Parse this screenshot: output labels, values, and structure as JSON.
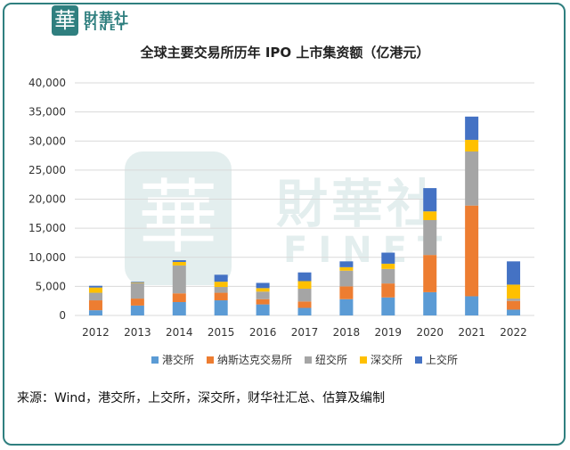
{
  "brand": {
    "logo_glyph": "華",
    "name_cn": "財華社",
    "name_en": "FINET"
  },
  "colors": {
    "brand": "#2f7f7f",
    "hkex": "#5b9bd5",
    "nasdaq": "#ed7d31",
    "nyse": "#a5a5a5",
    "szse": "#ffc000",
    "sse": "#4472c4"
  },
  "chart_data": {
    "type": "bar",
    "stacked": true,
    "title": "全球主要交易所历年 IPO 上市集资额（亿港元）",
    "xlabel": "",
    "ylabel": "",
    "ylim": [
      0,
      40000
    ],
    "yticks": [
      "0",
      "5,000",
      "10,000",
      "15,000",
      "20,000",
      "25,000",
      "30,000",
      "35,000",
      "40,000"
    ],
    "ytick_values": [
      0,
      5000,
      10000,
      15000,
      20000,
      25000,
      30000,
      35000,
      40000
    ],
    "grid": true,
    "legend_position": "bottom",
    "categories": [
      "2012",
      "2013",
      "2014",
      "2015",
      "2016",
      "2017",
      "2018",
      "2019",
      "2020",
      "2021",
      "2022"
    ],
    "series": [
      {
        "name": "港交所",
        "color": "#5b9bd5",
        "values": [
          900,
          1700,
          2300,
          2600,
          1900,
          1300,
          2800,
          3100,
          4000,
          3300,
          1000
        ]
      },
      {
        "name": "纳斯达克交易所",
        "color": "#ed7d31",
        "values": [
          1700,
          1200,
          1500,
          1300,
          900,
          1100,
          2200,
          2400,
          6400,
          15600,
          1500
        ]
      },
      {
        "name": "纽交所",
        "color": "#a5a5a5",
        "values": [
          1300,
          2700,
          4800,
          1000,
          1300,
          2200,
          2700,
          2500,
          6000,
          9300,
          400
        ]
      },
      {
        "name": "深交所",
        "color": "#ffc000",
        "values": [
          900,
          100,
          600,
          900,
          600,
          1300,
          600,
          900,
          1500,
          2000,
          2400
        ]
      },
      {
        "name": "上交所",
        "color": "#4472c4",
        "values": [
          300,
          100,
          300,
          1200,
          900,
          1500,
          1000,
          1900,
          4000,
          4000,
          4000
        ]
      }
    ]
  },
  "source_text": "来源：Wind，港交所，上交所，深交所，财华社汇总、估算及编制"
}
